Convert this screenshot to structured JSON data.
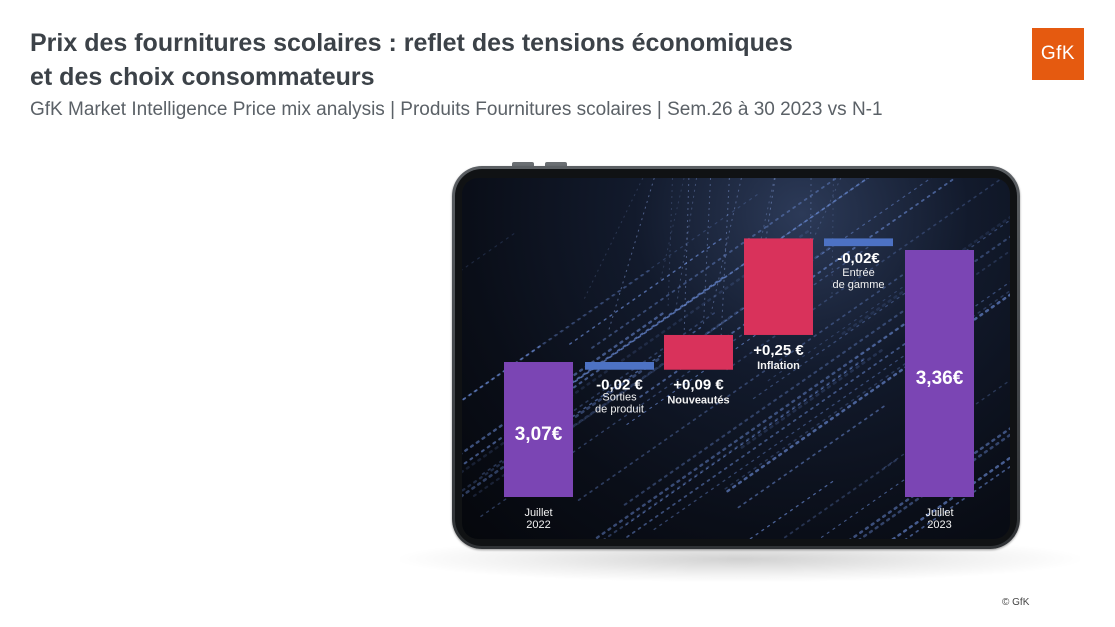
{
  "header": {
    "title_line1": "Prix des fournitures scolaires : reflet des tensions économiques",
    "title_line2": "et des choix consommateurs",
    "subtitle": "GfK Market Intelligence Price mix analysis | Produits Fournitures scolaires | Sem.26 à 30 2023 vs N-1",
    "logo_text": "GfK"
  },
  "footer": {
    "copyright": "© GfK"
  },
  "colors": {
    "purple": "#7b45b4",
    "red": "#d9325b",
    "blue": "#4d72c4",
    "logo": "#e55a10"
  },
  "chart_data": {
    "type": "waterfall",
    "steps": [
      {
        "kind": "total",
        "value": 3.07,
        "label": "3,07€",
        "category": [
          "Juillet",
          "2022"
        ]
      },
      {
        "kind": "delta",
        "value": -0.02,
        "label": "-0,02 €",
        "category": [
          "Sorties",
          "de produit"
        ]
      },
      {
        "kind": "delta",
        "value": 0.09,
        "label": "+0,09 €",
        "category": [
          "Nouveautés"
        ]
      },
      {
        "kind": "delta",
        "value": 0.25,
        "label": "+0,25 €",
        "category": [
          "Inflation"
        ]
      },
      {
        "kind": "delta",
        "value": -0.02,
        "label": "-0,02€",
        "category": [
          "Entrée",
          "de gamme"
        ]
      },
      {
        "kind": "total",
        "value": 3.36,
        "label": "3,36€",
        "category": [
          "Juillet",
          "2023"
        ]
      }
    ]
  }
}
